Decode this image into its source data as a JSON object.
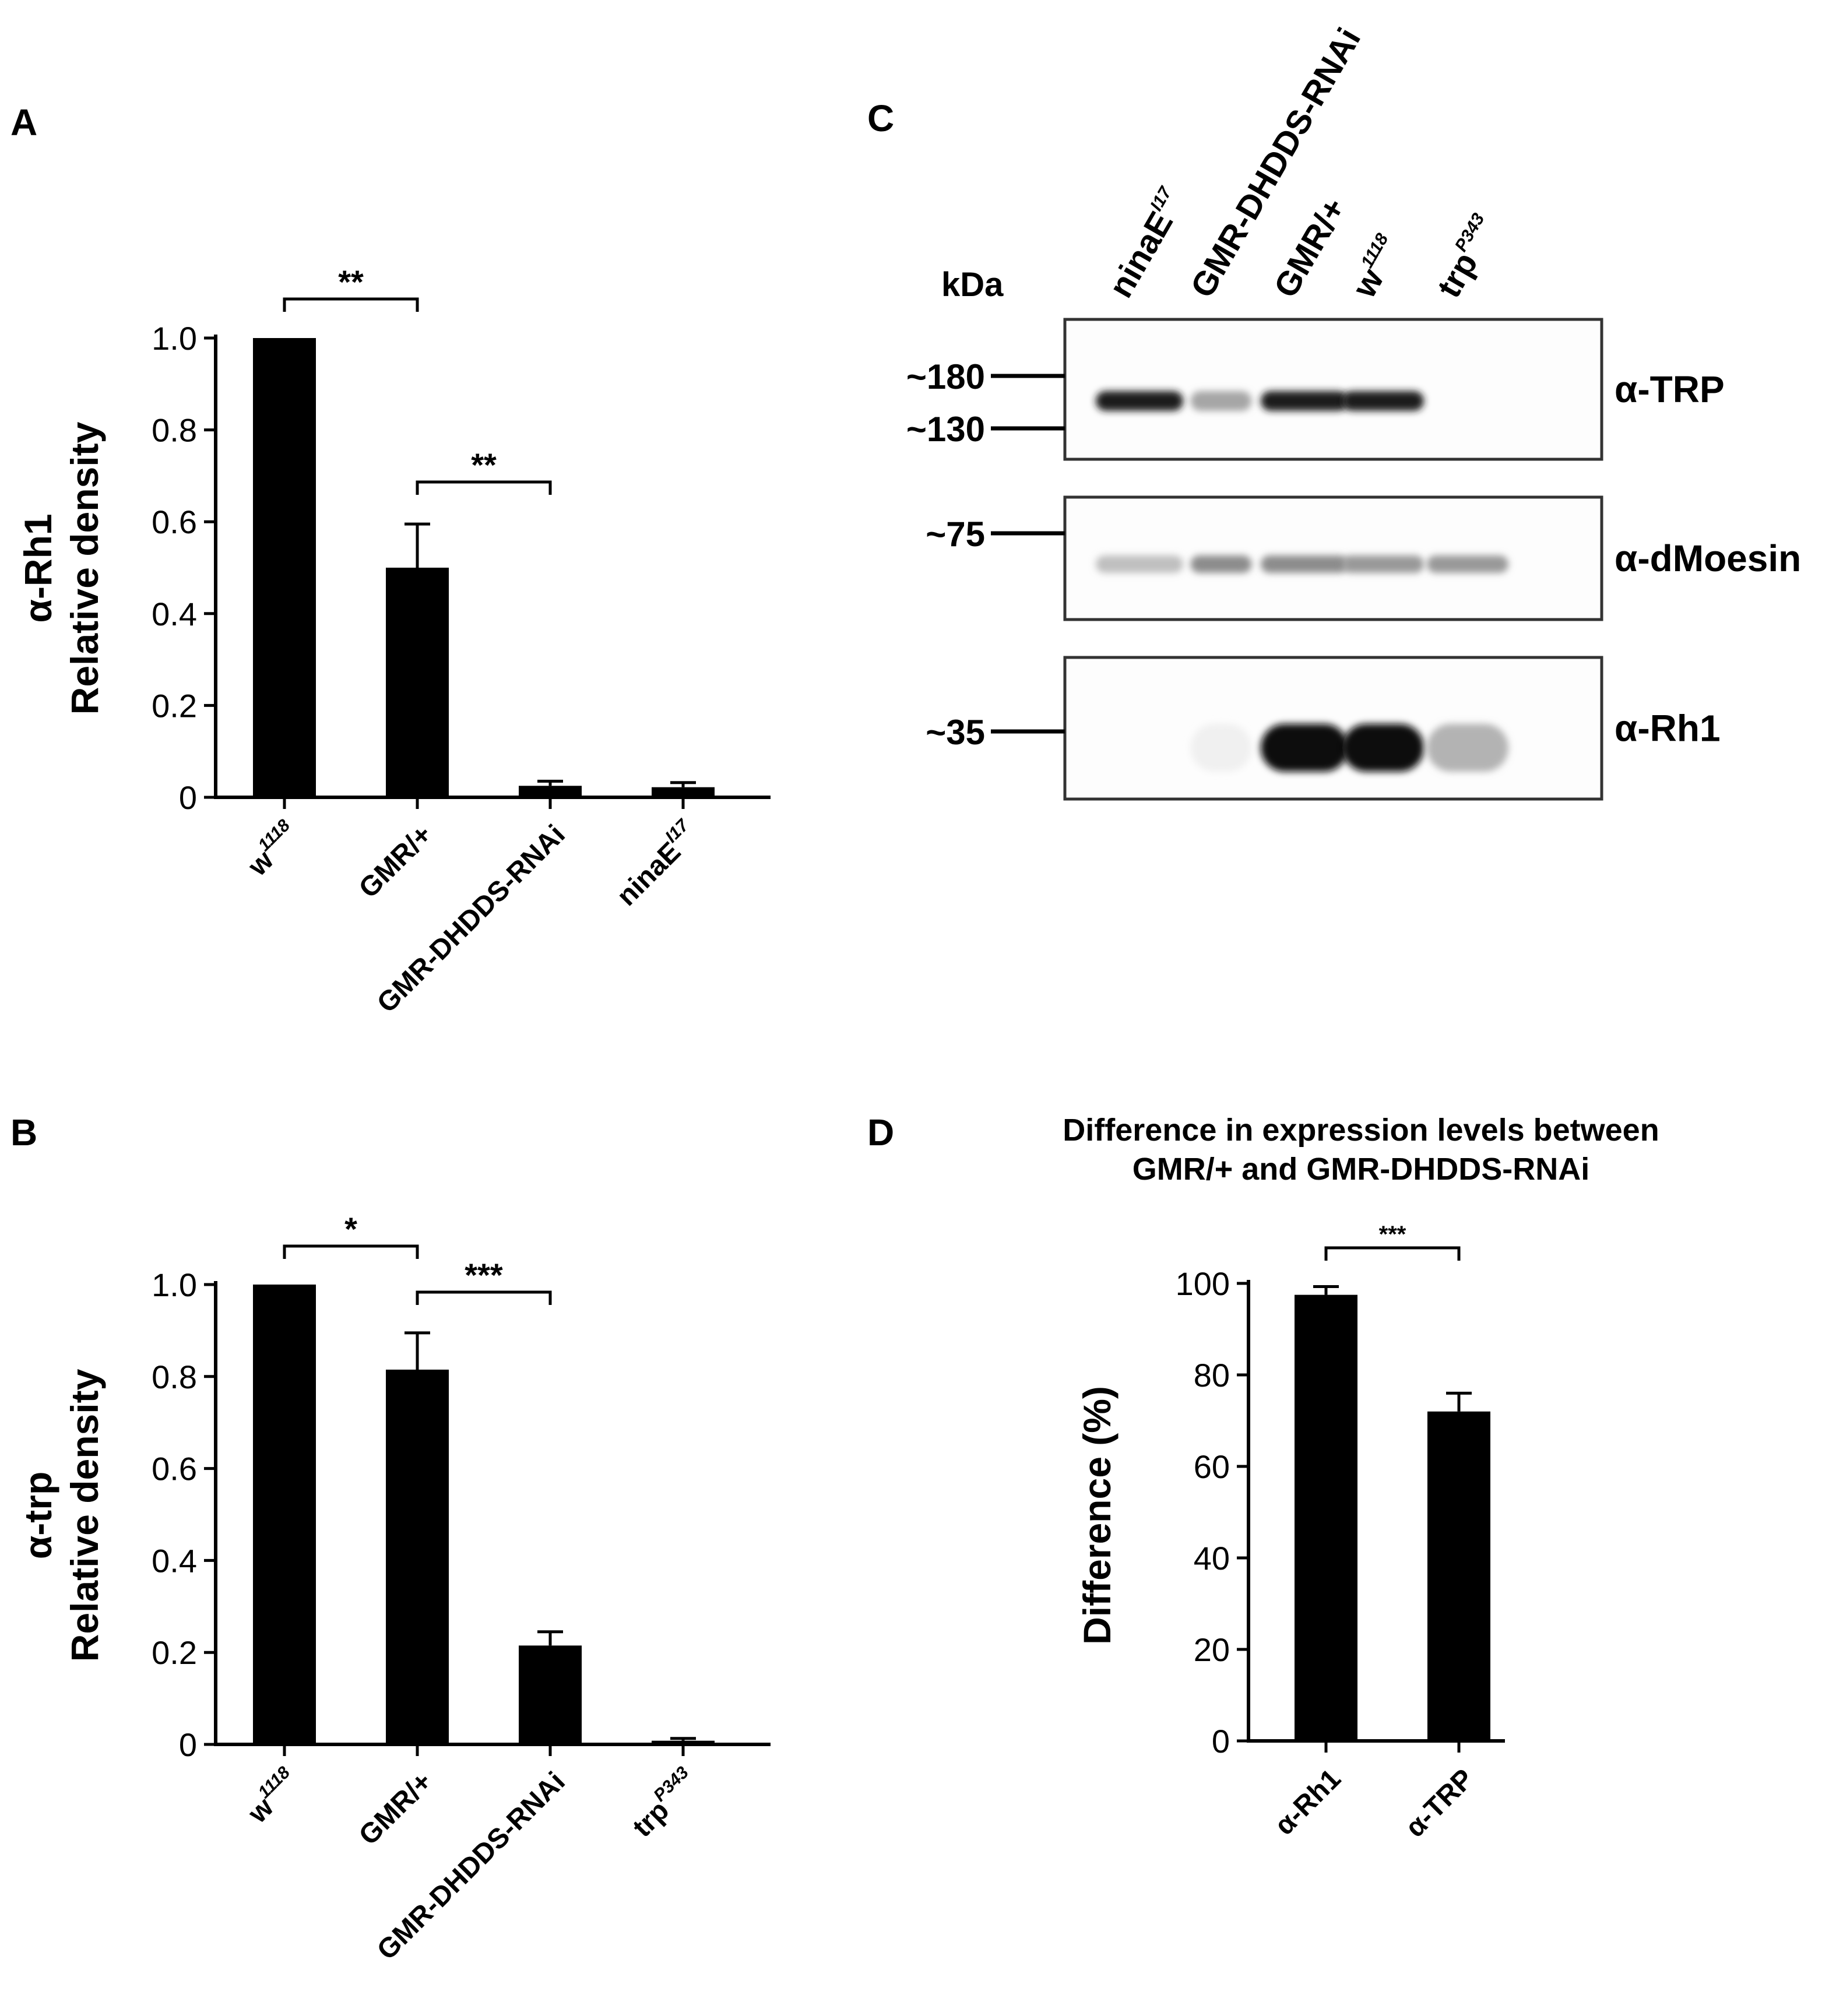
{
  "panels": {
    "a": {
      "letter": "A"
    },
    "b": {
      "letter": "B"
    },
    "c": {
      "letter": "C"
    },
    "d": {
      "letter": "D"
    }
  },
  "chart_data": [
    {
      "id": "A",
      "type": "bar",
      "ylabel_line1": "α-Rh1",
      "ylabel_line2": "Relative density",
      "ylim": [
        0,
        1.0
      ],
      "yticks": [
        "0",
        "0.2",
        "0.4",
        "0.6",
        "0.8",
        "1.0"
      ],
      "yticks_values": [
        0,
        0.2,
        0.4,
        0.6,
        0.8,
        1.0
      ],
      "categories": [
        {
          "base": "w",
          "sup": "1118"
        },
        {
          "base": "GMR/+",
          "sup": ""
        },
        {
          "base": "GMR-DHDDS-RNAi",
          "sup": ""
        },
        {
          "base": "ninaE",
          "sup": "I17"
        }
      ],
      "values": [
        1.0,
        0.5,
        0.025,
        0.022
      ],
      "errors": [
        0,
        0.095,
        0.01,
        0.01
      ],
      "significance": [
        {
          "from": 0,
          "to": 1,
          "label": "**"
        },
        {
          "from": 1,
          "to": 2,
          "label": "**"
        }
      ]
    },
    {
      "id": "B",
      "type": "bar",
      "ylabel_line1": "α-trp",
      "ylabel_line2": "Relative density",
      "ylim": [
        0,
        1.0
      ],
      "yticks": [
        "0",
        "0.2",
        "0.4",
        "0.6",
        "0.8",
        "1.0"
      ],
      "yticks_values": [
        0,
        0.2,
        0.4,
        0.6,
        0.8,
        1.0
      ],
      "categories": [
        {
          "base": "w",
          "sup": "1118"
        },
        {
          "base": "GMR/+",
          "sup": ""
        },
        {
          "base": "GMR-DHDDS-RNAi",
          "sup": ""
        },
        {
          "base": "trp",
          "sup": "P343"
        }
      ],
      "values": [
        1.0,
        0.815,
        0.215,
        0.008
      ],
      "errors": [
        0,
        0.08,
        0.03,
        0.005
      ],
      "significance": [
        {
          "from": 0,
          "to": 1,
          "label": "*"
        },
        {
          "from": 1,
          "to": 2,
          "label": "***"
        }
      ]
    },
    {
      "id": "C",
      "type": "table",
      "unit_label": "kDa",
      "lanes": [
        {
          "base": "ninaE",
          "sup": "I17"
        },
        {
          "base": "GMR-DHDDS-RNAi",
          "sup": ""
        },
        {
          "base": "GMR/+",
          "sup": ""
        },
        {
          "base": "w",
          "sup": "1118"
        },
        {
          "base": "trp",
          "sup": "P343"
        }
      ],
      "blots": [
        {
          "label": "α-TRP",
          "markers": [
            "~180",
            "~130"
          ],
          "band_intensity": [
            0.9,
            0.35,
            0.9,
            0.9,
            0
          ]
        },
        {
          "label": "α-dMoesin",
          "markers": [
            "~75"
          ],
          "band_intensity": [
            0.25,
            0.45,
            0.45,
            0.4,
            0.4
          ]
        },
        {
          "label": "α-Rh1",
          "markers": [
            "~35"
          ],
          "band_intensity": [
            0,
            0.06,
            0.95,
            0.95,
            0.3
          ]
        }
      ]
    },
    {
      "id": "D",
      "type": "bar",
      "title_line1": "Difference in expression levels between",
      "title_line2": "GMR/+ and GMR-DHDDS-RNAi",
      "ylabel": "Difference (%)",
      "ylim": [
        0,
        100
      ],
      "yticks": [
        "0",
        "20",
        "40",
        "60",
        "80",
        "100"
      ],
      "yticks_values": [
        0,
        20,
        40,
        60,
        80,
        100
      ],
      "categories": [
        "α-Rh1",
        "α-TRP"
      ],
      "values": [
        97.5,
        72
      ],
      "errors": [
        1.8,
        4
      ],
      "significance": [
        {
          "from": 0,
          "to": 1,
          "label": "***"
        }
      ]
    }
  ]
}
